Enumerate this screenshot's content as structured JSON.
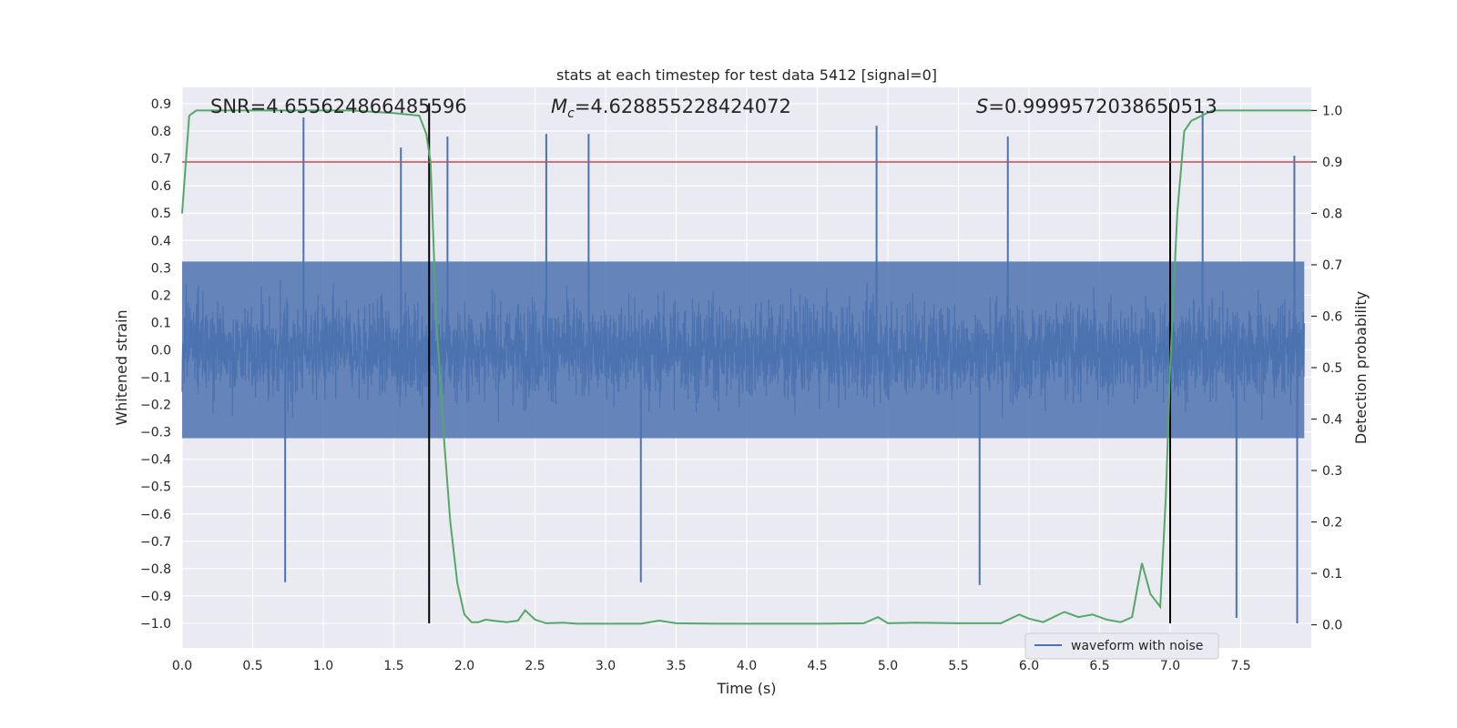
{
  "chart_data": {
    "type": "line",
    "title": "stats at each timestep for test data 5412 [signal=0]",
    "xlabel": "Time (s)",
    "ylabel": "Whitened strain",
    "y2label": "Detection probability",
    "xlim": [
      0.0,
      8.0
    ],
    "ylim": [
      -1.09,
      0.96
    ],
    "y2lim": [
      -0.045,
      1.045
    ],
    "xticks": [
      0.0,
      0.5,
      1.0,
      1.5,
      2.0,
      2.5,
      3.0,
      3.5,
      4.0,
      4.5,
      5.0,
      5.5,
      6.0,
      6.5,
      7.0,
      7.5
    ],
    "xtick_labels": [
      "0.0",
      "0.5",
      "1.0",
      "1.5",
      "2.0",
      "2.5",
      "3.0",
      "3.5",
      "4.0",
      "4.5",
      "5.0",
      "5.5",
      "6.0",
      "6.5",
      "7.0",
      "7.5"
    ],
    "yticks": [
      -1.0,
      -0.9,
      -0.8,
      -0.7,
      -0.6,
      -0.5,
      -0.4,
      -0.3,
      -0.2,
      -0.1,
      0.0,
      0.1,
      0.2,
      0.3,
      0.4,
      0.5,
      0.6,
      0.7,
      0.8,
      0.9
    ],
    "ytick_labels": [
      "−1.0",
      "−0.9",
      "−0.8",
      "−0.7",
      "−0.6",
      "−0.5",
      "−0.4",
      "−0.3",
      "−0.2",
      "−0.1",
      "0.0",
      "0.1",
      "0.2",
      "0.3",
      "0.4",
      "0.5",
      "0.6",
      "0.7",
      "0.8",
      "0.9"
    ],
    "y2ticks": [
      0.0,
      0.1,
      0.2,
      0.3,
      0.4,
      0.5,
      0.6,
      0.7,
      0.8,
      0.9,
      1.0
    ],
    "y2tick_labels": [
      "0.0",
      "0.1",
      "0.2",
      "0.3",
      "0.4",
      "0.5",
      "0.6",
      "0.7",
      "0.8",
      "0.9",
      "1.0"
    ],
    "grid": true,
    "legend_position": "lower-right",
    "annotations": {
      "snr_prefix": "SNR=",
      "snr_value": "4.655624866485596",
      "mc_sub": "c",
      "mc_value": "=4.628855228424072",
      "s_value": "=0.9999572038650513"
    },
    "threshold": 0.9,
    "vlines": [
      1.75,
      7.0
    ],
    "series": [
      {
        "name": "waveform with noise",
        "axis": "left",
        "color": "#4c72b0",
        "description_peaks": [
          {
            "x": 0.86,
            "y": 0.85
          },
          {
            "x": 1.55,
            "y": 0.74
          },
          {
            "x": 1.88,
            "y": 0.78
          },
          {
            "x": 2.58,
            "y": 0.79
          },
          {
            "x": 2.88,
            "y": 0.79
          },
          {
            "x": 4.92,
            "y": 0.82
          },
          {
            "x": 5.85,
            "y": 0.78
          },
          {
            "x": 7.23,
            "y": 0.87
          },
          {
            "x": 7.88,
            "y": 0.71
          },
          {
            "x": 0.73,
            "y": -0.85
          },
          {
            "x": 3.25,
            "y": -0.85
          },
          {
            "x": 5.65,
            "y": -0.86
          },
          {
            "x": 7.47,
            "y": -0.98
          },
          {
            "x": 7.9,
            "y": -1.0
          }
        ],
        "typical_amplitude": 0.38
      },
      {
        "name": "detection probability",
        "axis": "right",
        "color": "#55a868",
        "x": [
          0.0,
          0.05,
          0.1,
          0.2,
          0.4,
          0.8,
          1.2,
          1.5,
          1.68,
          1.73,
          1.76,
          1.8,
          1.85,
          1.9,
          1.95,
          2.0,
          2.05,
          2.1,
          2.15,
          2.2,
          2.3,
          2.38,
          2.43,
          2.5,
          2.58,
          2.7,
          2.8,
          3.0,
          3.25,
          3.38,
          3.5,
          3.8,
          4.5,
          4.83,
          4.93,
          5.0,
          5.2,
          5.5,
          5.8,
          5.93,
          6.0,
          6.1,
          6.25,
          6.35,
          6.45,
          6.55,
          6.65,
          6.73,
          6.8,
          6.86,
          6.93,
          6.97,
          7.0,
          7.05,
          7.1,
          7.15,
          7.3,
          7.5,
          8.0
        ],
        "y": [
          0.8,
          0.99,
          1.0,
          1.0,
          1.0,
          1.0,
          1.0,
          0.995,
          0.99,
          0.955,
          0.9,
          0.6,
          0.38,
          0.2,
          0.08,
          0.02,
          0.005,
          0.005,
          0.01,
          0.008,
          0.005,
          0.008,
          0.028,
          0.01,
          0.003,
          0.004,
          0.002,
          0.002,
          0.002,
          0.008,
          0.003,
          0.002,
          0.002,
          0.003,
          0.015,
          0.003,
          0.004,
          0.003,
          0.003,
          0.02,
          0.012,
          0.005,
          0.025,
          0.015,
          0.02,
          0.01,
          0.005,
          0.015,
          0.12,
          0.06,
          0.035,
          0.25,
          0.5,
          0.8,
          0.96,
          0.98,
          1.0,
          1.0,
          1.0
        ]
      },
      {
        "name": "threshold",
        "axis": "right",
        "color": "#c44e52",
        "x": [
          0.0,
          8.0
        ],
        "y": [
          0.9,
          0.9
        ]
      }
    ]
  }
}
